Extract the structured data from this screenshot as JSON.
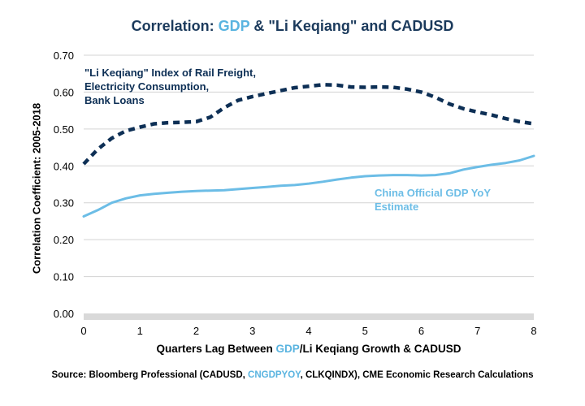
{
  "chart_data": {
    "type": "line",
    "title": {
      "prefix": "Correlation: ",
      "accent": "GDP",
      "suffix": " & \"Li Keqiang\" and CADUSD"
    },
    "xlabel": {
      "prefix": "Quarters Lag Between ",
      "accent": "GDP",
      "suffix": "/Li Keqiang Growth & CADUSD"
    },
    "ylabel": "Correlation Coefficient: 2005-2018",
    "source": {
      "prefix": "Source: Bloomberg Professional (CADUSD, ",
      "accent": "CNGDPYOY",
      "suffix": ", CLKQINDX), CME Economic Research Calculations"
    },
    "xlim": [
      0,
      8
    ],
    "ylim": [
      0,
      0.7
    ],
    "x_ticks": [
      "0",
      "1",
      "2",
      "3",
      "4",
      "5",
      "6",
      "7",
      "8"
    ],
    "y_ticks": [
      "0.00",
      "0.10",
      "0.20",
      "0.30",
      "0.40",
      "0.50",
      "0.60",
      "0.70"
    ],
    "grid": true,
    "series": [
      {
        "name_lines": [
          "\"Li Keqiang\" Index of Rail Freight,",
          "Electricity Consumption,",
          "Bank Loans"
        ],
        "color": "#0d2f55",
        "style": "dashed",
        "x": [
          0,
          0.25,
          0.5,
          0.75,
          1,
          1.25,
          1.5,
          1.75,
          2,
          2.25,
          2.5,
          2.75,
          3,
          3.25,
          3.5,
          3.75,
          4,
          4.25,
          4.5,
          4.75,
          5,
          5.25,
          5.5,
          5.75,
          6,
          6.25,
          6.5,
          6.75,
          7,
          7.25,
          7.5,
          7.75,
          8
        ],
        "values": [
          0.405,
          0.445,
          0.475,
          0.495,
          0.505,
          0.514,
          0.517,
          0.518,
          0.52,
          0.532,
          0.558,
          0.578,
          0.588,
          0.596,
          0.604,
          0.612,
          0.616,
          0.62,
          0.619,
          0.614,
          0.613,
          0.614,
          0.613,
          0.608,
          0.6,
          0.586,
          0.568,
          0.555,
          0.546,
          0.538,
          0.528,
          0.52,
          0.514
        ]
      },
      {
        "name_lines": [
          "China Official GDP YoY",
          "Estimate"
        ],
        "color": "#6cbde6",
        "style": "solid",
        "x": [
          0,
          0.25,
          0.5,
          0.75,
          1,
          1.25,
          1.5,
          1.75,
          2,
          2.25,
          2.5,
          2.75,
          3,
          3.25,
          3.5,
          3.75,
          4,
          4.25,
          4.5,
          4.75,
          5,
          5.25,
          5.5,
          5.75,
          6,
          6.25,
          6.5,
          6.75,
          7,
          7.25,
          7.5,
          7.75,
          8
        ],
        "values": [
          0.263,
          0.28,
          0.3,
          0.312,
          0.32,
          0.324,
          0.327,
          0.33,
          0.332,
          0.333,
          0.334,
          0.337,
          0.34,
          0.343,
          0.346,
          0.348,
          0.352,
          0.357,
          0.363,
          0.368,
          0.372,
          0.374,
          0.375,
          0.375,
          0.374,
          0.375,
          0.38,
          0.39,
          0.397,
          0.403,
          0.408,
          0.415,
          0.427
        ]
      }
    ]
  }
}
